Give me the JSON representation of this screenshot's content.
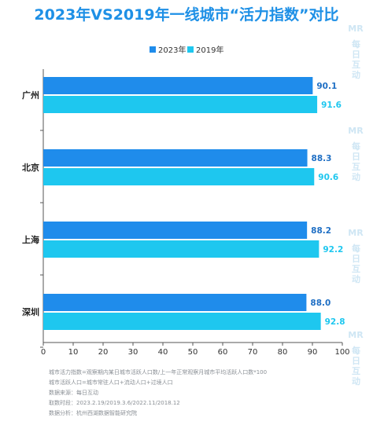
{
  "chart_data": {
    "type": "bar",
    "orientation": "horizontal",
    "title": "2023年VS2019年一线城市“活力指数”对比",
    "categories": [
      "广州",
      "北京",
      "上海",
      "深圳"
    ],
    "series": [
      {
        "name": "2023年",
        "values": [
          90.1,
          88.3,
          88.2,
          88.0
        ],
        "color": "#1f8ceb"
      },
      {
        "name": "2019年",
        "values": [
          91.6,
          90.6,
          92.2,
          92.8
        ],
        "color": "#1ec7ef"
      }
    ],
    "xlim": [
      0,
      100
    ],
    "xticks": [
      0,
      10,
      20,
      30,
      40,
      50,
      60,
      70,
      80,
      90,
      100
    ],
    "grid": false,
    "legend_position": "top-center",
    "title_color": "#1e90e6",
    "label_colors": [
      "#1f6fc4",
      "#1ec7ef"
    ]
  },
  "notes": [
    "城市活力指数=观察期内某日城市活跃人口数/上一年正常观察月城市平均活跃人口数*100",
    "城市活跃人口=城市常驻人口+流动人口+过境人口",
    "数据来源：每日互动",
    "取数时段：2023.2.19/2019.3.6/2022.11/2018.12",
    "数据分析：杭州西湖数据智能研究院"
  ],
  "watermark": {
    "logo": "MR",
    "text": "每日互动"
  }
}
